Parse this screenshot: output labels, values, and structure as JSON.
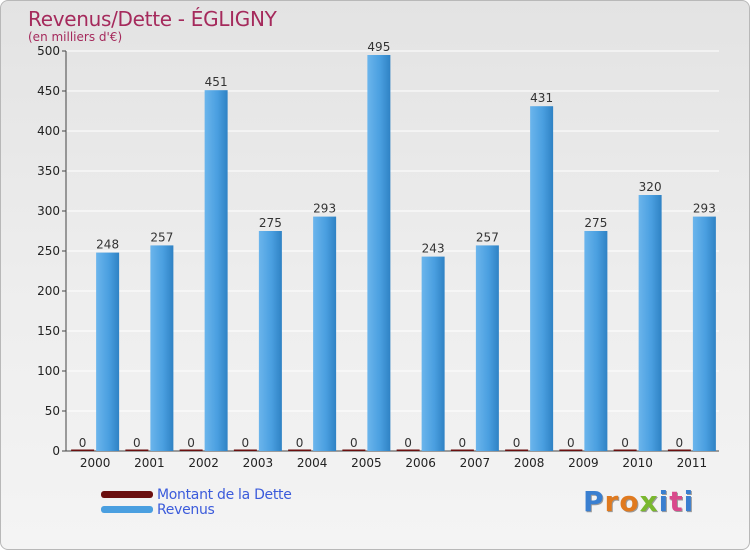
{
  "header": {
    "title": "Revenus/Dette - ÉGLIGNY",
    "subtitle": "(en milliers d'€)"
  },
  "chart_data": {
    "type": "bar",
    "title": "Revenus/Dette - ÉGLIGNY",
    "ylabel": "(en milliers d'€)",
    "xlabel": "",
    "ylim": [
      0,
      500
    ],
    "yticks": [
      0,
      50,
      100,
      150,
      200,
      250,
      300,
      350,
      400,
      450,
      500
    ],
    "grid": true,
    "legend": "bottom-left",
    "categories": [
      "2000",
      "2001",
      "2002",
      "2003",
      "2004",
      "2005",
      "2006",
      "2007",
      "2008",
      "2009",
      "2010",
      "2011"
    ],
    "series": [
      {
        "name": "Montant de la Dette",
        "color": "#6b0f0f",
        "values": [
          0,
          0,
          0,
          0,
          0,
          0,
          0,
          0,
          0,
          0,
          0,
          0
        ]
      },
      {
        "name": "Revenus",
        "color": "#4a9fe0",
        "values": [
          248,
          257,
          451,
          275,
          293,
          495,
          243,
          257,
          431,
          275,
          320,
          293
        ]
      }
    ]
  },
  "legend": {
    "items": [
      {
        "label": "Montant de la Dette",
        "color": "#6b0f0f"
      },
      {
        "label": "Revenus",
        "color": "#4a9fe0"
      }
    ]
  },
  "logo": {
    "letters": [
      "P",
      "r",
      "o",
      "x",
      "i",
      "t",
      "i"
    ],
    "colors": [
      "#3a7fd0",
      "#e07a1f",
      "#e07a1f",
      "#7ab82e",
      "#3a7fd0",
      "#d94a8c",
      "#3a7fd0"
    ]
  }
}
